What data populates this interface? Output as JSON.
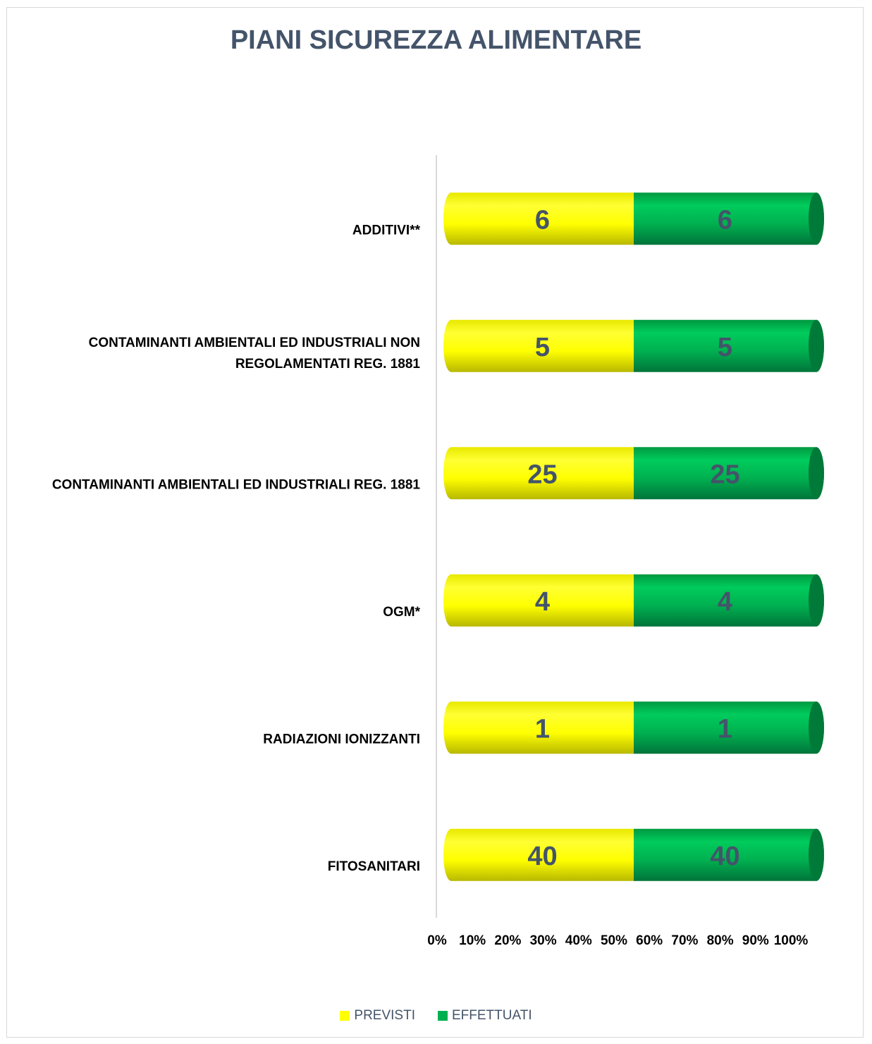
{
  "chart_data": {
    "type": "bar",
    "orientation": "horizontal",
    "stacking": "percent",
    "title": "PIANI SICUREZZA ALIMENTARE",
    "categories": [
      [
        "ADDITIVI**"
      ],
      [
        "CONTAMINANTI AMBIENTALI ED INDUSTRIALI NON",
        "REGOLAMENTATI REG. 1881"
      ],
      [
        "CONTAMINANTI AMBIENTALI ED INDUSTRIALI REG. 1881"
      ],
      [
        "OGM*"
      ],
      [
        "RADIAZIONI IONIZZANTI"
      ],
      [
        "FITOSANITARI"
      ]
    ],
    "series": [
      {
        "name": "PREVISTI",
        "color": "#ffff00",
        "values": [
          6,
          5,
          25,
          4,
          1,
          40
        ]
      },
      {
        "name": "EFFETTUATI",
        "color": "#00b050",
        "values": [
          6,
          5,
          25,
          4,
          1,
          40
        ]
      }
    ],
    "x_ticks": [
      "0%",
      "10%",
      "20%",
      "30%",
      "40%",
      "50%",
      "60%",
      "70%",
      "80%",
      "90%",
      "100%"
    ],
    "xlim": [
      0,
      100
    ],
    "grid": false,
    "legend_position": "bottom"
  }
}
